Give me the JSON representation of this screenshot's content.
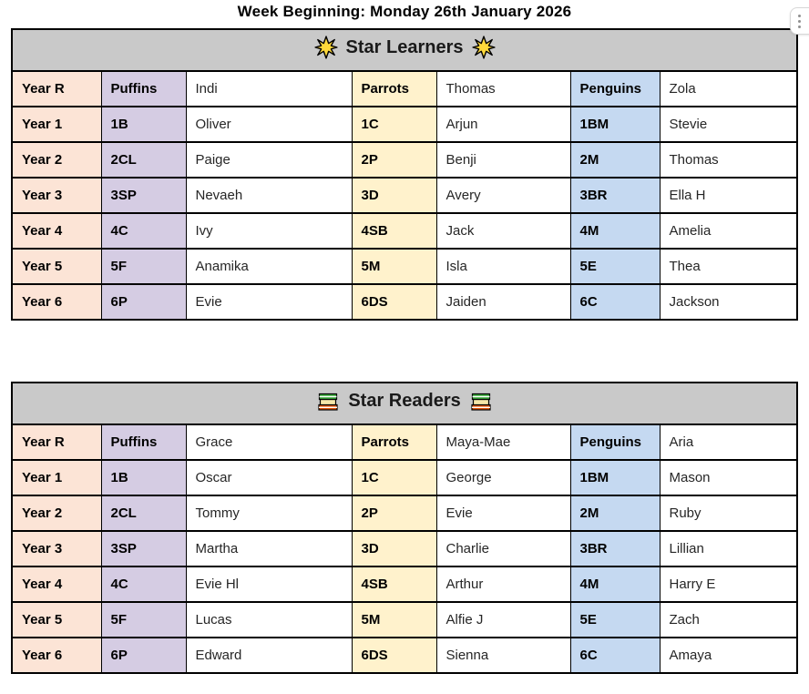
{
  "page_title": "Week Beginning: Monday 26th January 2026",
  "widget": {
    "tooltip": "more-options"
  },
  "colors": {
    "header_bg": "#C9C9C9",
    "year_column_bg": "#FCE4D6",
    "puffins_column_bg": "#D5CCE3",
    "parrots_column_bg": "#FFF2CC",
    "penguins_column_bg": "#C5D9F1",
    "border": "#000000",
    "star_icon": "#FFD93B",
    "books_icon_top": "#37A837",
    "books_icon_middle": "#F5E6A8",
    "books_icon_bottom": "#E8590C"
  },
  "tables": [
    {
      "title": "Star Learners",
      "icon": "star-icon",
      "rows": [
        {
          "year": "Year R",
          "c1": "Puffins",
          "n1": "Indi",
          "c2": "Parrots",
          "n2": "Thomas",
          "c3": "Penguins",
          "n3": "Zola"
        },
        {
          "year": "Year 1",
          "c1": "1B",
          "n1": "Oliver",
          "c2": "1C",
          "n2": "Arjun",
          "c3": "1BM",
          "n3": "Stevie"
        },
        {
          "year": "Year 2",
          "c1": "2CL",
          "n1": "Paige",
          "c2": "2P",
          "n2": "Benji",
          "c3": "2M",
          "n3": "Thomas"
        },
        {
          "year": "Year 3",
          "c1": "3SP",
          "n1": "Nevaeh",
          "c2": "3D",
          "n2": "Avery",
          "c3": "3BR",
          "n3": "Ella H"
        },
        {
          "year": "Year 4",
          "c1": "4C",
          "n1": "Ivy",
          "c2": "4SB",
          "n2": "Jack",
          "c3": "4M",
          "n3": "Amelia"
        },
        {
          "year": "Year 5",
          "c1": "5F",
          "n1": "Anamika",
          "c2": "5M",
          "n2": "Isla",
          "c3": "5E",
          "n3": "Thea"
        },
        {
          "year": "Year 6",
          "c1": "6P",
          "n1": "Evie",
          "c2": "6DS",
          "n2": "Jaiden",
          "c3": "6C",
          "n3": "Jackson"
        }
      ]
    },
    {
      "title": "Star Readers",
      "icon": "books-icon",
      "rows": [
        {
          "year": "Year R",
          "c1": "Puffins",
          "n1": "Grace",
          "c2": "Parrots",
          "n2": "Maya-Mae",
          "c3": "Penguins",
          "n3": "Aria"
        },
        {
          "year": "Year 1",
          "c1": "1B",
          "n1": "Oscar",
          "c2": "1C",
          "n2": "George",
          "c3": "1BM",
          "n3": "Mason"
        },
        {
          "year": "Year 2",
          "c1": "2CL",
          "n1": "Tommy",
          "c2": "2P",
          "n2": "Evie",
          "c3": "2M",
          "n3": "Ruby"
        },
        {
          "year": "Year 3",
          "c1": "3SP",
          "n1": "Martha",
          "c2": "3D",
          "n2": "Charlie",
          "c3": "3BR",
          "n3": "Lillian"
        },
        {
          "year": "Year 4",
          "c1": "4C",
          "n1": "Evie Hl",
          "c2": "4SB",
          "n2": "Arthur",
          "c3": "4M",
          "n3": "Harry E"
        },
        {
          "year": "Year 5",
          "c1": "5F",
          "n1": "Lucas",
          "c2": "5M",
          "n2": "Alfie J",
          "c3": "5E",
          "n3": "Zach"
        },
        {
          "year": "Year 6",
          "c1": "6P",
          "n1": "Edward",
          "c2": "6DS",
          "n2": "Sienna",
          "c3": "6C",
          "n3": "Amaya"
        }
      ]
    }
  ]
}
